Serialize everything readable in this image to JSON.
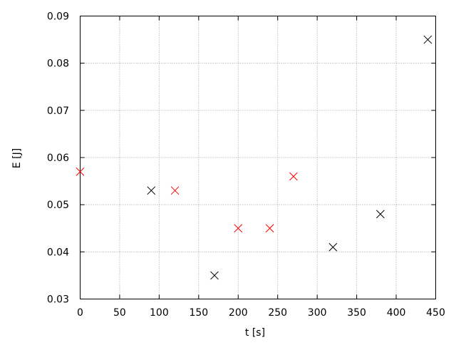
{
  "chart_data": {
    "type": "scatter",
    "title": "",
    "xlabel": "t [s]",
    "ylabel": "E [J]",
    "xlim": [
      0,
      450
    ],
    "ylim": [
      0.03,
      0.09
    ],
    "xticks": [
      "0",
      "50",
      "100",
      "150",
      "200",
      "250",
      "300",
      "350",
      "400",
      "450"
    ],
    "yticks": [
      "0.03",
      "0.04",
      "0.05",
      "0.06",
      "0.07",
      "0.08",
      "0.09"
    ],
    "grid": true,
    "marker": "x",
    "series": [
      {
        "color": "#ff0000",
        "x": [
          0,
          120,
          200,
          240,
          270
        ],
        "y": [
          0.057,
          0.053,
          0.045,
          0.045,
          0.056
        ]
      },
      {
        "color": "#000000",
        "x": [
          90,
          170,
          320,
          380,
          440
        ],
        "y": [
          0.053,
          0.035,
          0.041,
          0.048,
          0.085
        ]
      }
    ]
  }
}
